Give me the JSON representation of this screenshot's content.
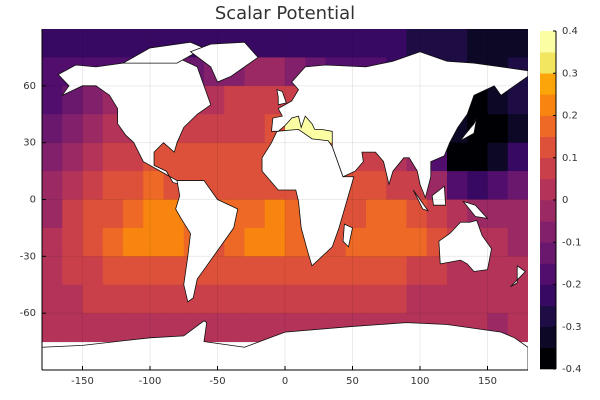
{
  "chart_data": {
    "type": "heatmap",
    "title": "Scalar Potential",
    "xlim": [
      -180,
      180
    ],
    "ylim": [
      -90,
      90
    ],
    "xticks": [
      -150,
      -100,
      -50,
      0,
      50,
      100,
      150
    ],
    "yticks": [
      -60,
      -30,
      0,
      30,
      60
    ],
    "grid": true,
    "x": [
      -172.5,
      -157.5,
      -142.5,
      -127.5,
      -112.5,
      -97.5,
      -82.5,
      -67.5,
      -52.5,
      -37.5,
      -22.5,
      -7.5,
      7.5,
      22.5,
      37.5,
      52.5,
      67.5,
      82.5,
      97.5,
      112.5,
      127.5,
      142.5,
      157.5,
      172.5
    ],
    "y": [
      82.5,
      67.5,
      52.5,
      37.5,
      22.5,
      7.5,
      -7.5,
      -22.5,
      -37.5,
      -52.5,
      -67.5
    ],
    "z": [
      [
        -0.25,
        -0.25,
        -0.25,
        -0.25,
        -0.25,
        -0.25,
        -0.25,
        -0.25,
        -0.25,
        -0.25,
        -0.25,
        -0.25,
        -0.25,
        -0.25,
        -0.25,
        -0.25,
        -0.25,
        -0.25,
        -0.3,
        -0.3,
        -0.3,
        -0.35,
        -0.35,
        -0.35
      ],
      [
        -0.2,
        -0.2,
        -0.2,
        -0.2,
        -0.2,
        -0.2,
        -0.2,
        -0.15,
        -0.1,
        -0.1,
        -0.05,
        -0.05,
        -0.1,
        -0.15,
        -0.2,
        -0.2,
        -0.2,
        -0.25,
        -0.3,
        -0.3,
        -0.3,
        -0.35,
        -0.35,
        -0.3
      ],
      [
        -0.2,
        -0.15,
        -0.1,
        -0.05,
        -0.05,
        -0.05,
        -0.05,
        0,
        0,
        0.05,
        0.05,
        0.05,
        0.05,
        0.0,
        -0.05,
        -0.1,
        -0.15,
        -0.2,
        -0.25,
        -0.3,
        -0.35,
        -0.4,
        -0.35,
        -0.3
      ],
      [
        -0.15,
        -0.1,
        -0.05,
        0,
        0.02,
        0.03,
        0.05,
        0.05,
        0.08,
        0.08,
        0.08,
        0.1,
        0.35,
        0.35,
        0.35,
        0.1,
        0.0,
        -0.1,
        -0.2,
        -0.3,
        -0.35,
        -0.4,
        -0.4,
        -0.35
      ],
      [
        -0.1,
        -0.05,
        0,
        0.05,
        0.08,
        0.1,
        0.1,
        0.1,
        0.1,
        0.1,
        0.1,
        0.1,
        0.15,
        0.15,
        0.15,
        0.05,
        0.05,
        0.0,
        -0.05,
        -0.2,
        -0.4,
        -0.4,
        -0.35,
        -0.25
      ],
      [
        -0.05,
        0,
        0.05,
        0.1,
        0.12,
        0.15,
        0.12,
        0.1,
        0.12,
        0.12,
        0.12,
        0.12,
        0.12,
        0.12,
        0.12,
        0.1,
        0.1,
        0.08,
        0.05,
        -0.05,
        -0.2,
        -0.25,
        -0.2,
        -0.15
      ],
      [
        -0.02,
        0.05,
        0.1,
        0.13,
        0.17,
        0.2,
        0.2,
        0.15,
        0.15,
        0.15,
        0.18,
        0.2,
        0.15,
        0.12,
        0.1,
        0.12,
        0.15,
        0.15,
        0.12,
        0.05,
        0.0,
        -0.05,
        -0.05,
        -0.05
      ],
      [
        0,
        0.05,
        0.1,
        0.15,
        0.2,
        0.22,
        0.22,
        0.15,
        0.12,
        0.15,
        0.2,
        0.2,
        0.18,
        0.15,
        0.12,
        0.15,
        0.17,
        0.17,
        0.15,
        0.1,
        0.05,
        0.02,
        0,
        -0.02
      ],
      [
        0.02,
        0.05,
        0.08,
        0.1,
        0.12,
        0.13,
        0.12,
        0.1,
        0.1,
        0.12,
        0.13,
        0.13,
        0.12,
        0.12,
        0.12,
        0.12,
        0.12,
        0.1,
        0.08,
        0.05,
        0.03,
        0.02,
        0.0,
        0.0
      ],
      [
        0.02,
        0.03,
        0.05,
        0.05,
        0.06,
        0.06,
        0.06,
        0.05,
        0.06,
        0.07,
        0.07,
        0.07,
        0.07,
        0.07,
        0.07,
        0.07,
        0.06,
        0.05,
        0.04,
        0.03,
        0.02,
        0.01,
        0,
        0
      ],
      [
        0.0,
        0.01,
        0.02,
        0.02,
        0.03,
        0.03,
        0.03,
        0.03,
        0.03,
        0.03,
        0.03,
        0.03,
        0.03,
        0.03,
        0.03,
        0.03,
        0.02,
        0.02,
        0.01,
        0.01,
        0.0,
        0.0,
        -0.01,
        0
      ]
    ],
    "colorbar": {
      "levels": [
        -0.4,
        -0.35,
        -0.3,
        -0.25,
        -0.2,
        -0.15,
        -0.1,
        -0.05,
        0,
        0.05,
        0.1,
        0.15,
        0.2,
        0.25,
        0.3,
        0.35,
        0.4
      ],
      "colors": [
        "#000004",
        "#0c0826",
        "#1e0c45",
        "#380962",
        "#510e6c",
        "#6a176e",
        "#82206c",
        "#9b2964",
        "#b33359",
        "#ca404a",
        "#dd513a",
        "#ed6925",
        "#f8850f",
        "#fca50a",
        "#f2e661",
        "#fcfea4"
      ],
      "ticks": [
        0.4,
        0.3,
        0.2,
        0.1,
        0,
        -0.1,
        -0.2,
        -0.3,
        -0.4
      ]
    }
  }
}
